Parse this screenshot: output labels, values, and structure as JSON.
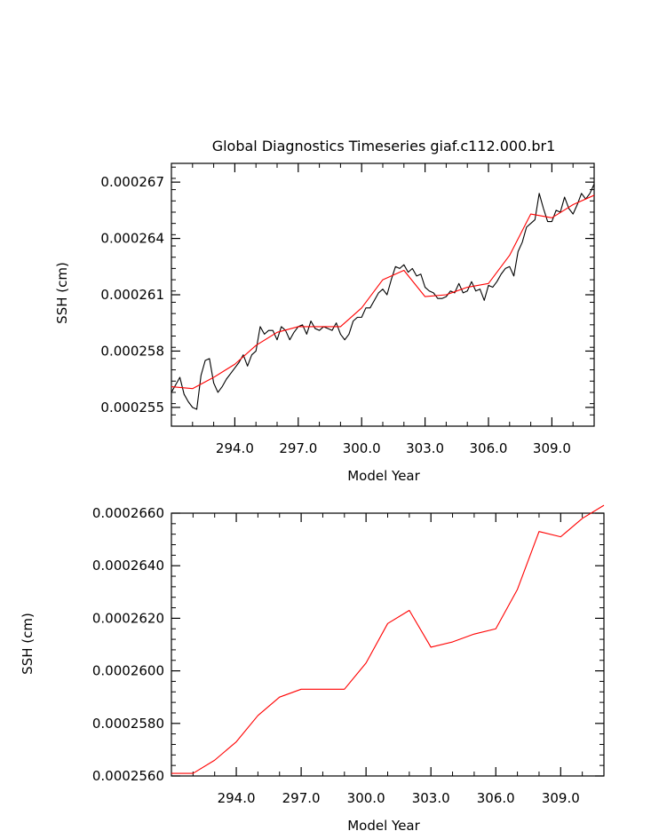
{
  "chart_data": [
    {
      "type": "line",
      "title": "Global Diagnostics Timeseries giaf.c112.000.br1",
      "xlabel": "Model Year",
      "ylabel": "SSH (cm)",
      "xlim": [
        291.0,
        311.0
      ],
      "ylim": [
        0.000254,
        0.000268
      ],
      "x_ticks": [
        294.0,
        297.0,
        300.0,
        303.0,
        306.0,
        309.0
      ],
      "x_tick_labels": [
        "294.0",
        "297.0",
        "300.0",
        "303.0",
        "306.0",
        "309.0"
      ],
      "y_ticks": [
        0.000255,
        0.000258,
        0.000261,
        0.000264,
        0.000267
      ],
      "y_tick_labels": [
        "0.000255",
        "0.000258",
        "0.000261",
        "0.000264",
        "0.000267"
      ],
      "series": [
        {
          "color": "#000000",
          "x": [
            291.0,
            291.2,
            291.4,
            291.6,
            291.8,
            292.0,
            292.2,
            292.4,
            292.6,
            292.8,
            293.0,
            293.2,
            293.4,
            293.6,
            293.8,
            294.0,
            294.2,
            294.4,
            294.6,
            294.8,
            295.0,
            295.2,
            295.4,
            295.6,
            295.8,
            296.0,
            296.2,
            296.4,
            296.6,
            296.8,
            297.0,
            297.2,
            297.4,
            297.6,
            297.8,
            298.0,
            298.2,
            298.4,
            298.6,
            298.8,
            299.0,
            299.2,
            299.4,
            299.6,
            299.8,
            300.0,
            300.2,
            300.4,
            300.6,
            300.8,
            301.0,
            301.2,
            301.4,
            301.6,
            301.8,
            302.0,
            302.2,
            302.4,
            302.6,
            302.8,
            303.0,
            303.2,
            303.4,
            303.6,
            303.8,
            304.0,
            304.2,
            304.4,
            304.6,
            304.8,
            305.0,
            305.2,
            305.4,
            305.6,
            305.8,
            306.0,
            306.2,
            306.4,
            306.6,
            306.8,
            307.0,
            307.2,
            307.4,
            307.6,
            307.8,
            308.0,
            308.2,
            308.4,
            308.6,
            308.8,
            309.0,
            309.2,
            309.4,
            309.6,
            309.8,
            310.0,
            310.2,
            310.4,
            310.6,
            310.8,
            311.0
          ],
          "values": [
            0.0002558,
            0.0002562,
            0.0002566,
            0.0002557,
            0.0002553,
            0.000255,
            0.0002549,
            0.0002567,
            0.0002575,
            0.0002576,
            0.0002563,
            0.0002558,
            0.0002561,
            0.0002565,
            0.0002568,
            0.0002571,
            0.0002574,
            0.0002578,
            0.0002572,
            0.0002578,
            0.000258,
            0.0002593,
            0.0002589,
            0.0002591,
            0.0002591,
            0.0002586,
            0.0002593,
            0.0002591,
            0.0002586,
            0.000259,
            0.0002593,
            0.0002594,
            0.0002589,
            0.0002596,
            0.0002592,
            0.0002591,
            0.0002593,
            0.0002592,
            0.0002591,
            0.0002595,
            0.0002589,
            0.0002586,
            0.0002589,
            0.0002596,
            0.0002598,
            0.0002598,
            0.0002603,
            0.0002603,
            0.0002607,
            0.0002611,
            0.0002613,
            0.000261,
            0.0002618,
            0.0002625,
            0.0002624,
            0.0002626,
            0.0002622,
            0.0002624,
            0.000262,
            0.0002621,
            0.0002614,
            0.0002612,
            0.0002611,
            0.0002608,
            0.0002608,
            0.0002609,
            0.0002612,
            0.0002611,
            0.0002616,
            0.0002611,
            0.0002612,
            0.0002617,
            0.0002612,
            0.0002613,
            0.0002607,
            0.0002615,
            0.0002614,
            0.0002617,
            0.0002621,
            0.0002624,
            0.0002625,
            0.000262,
            0.0002633,
            0.0002638,
            0.0002646,
            0.0002648,
            0.000265,
            0.0002664,
            0.0002656,
            0.0002649,
            0.0002649,
            0.0002655,
            0.0002654,
            0.0002662,
            0.0002656,
            0.0002653,
            0.0002658,
            0.0002664,
            0.0002661,
            0.0002664,
            0.0002669
          ]
        },
        {
          "color": "#ff0000",
          "x": [
            291.0,
            292.0,
            293.0,
            294.0,
            295.0,
            296.0,
            297.0,
            298.0,
            299.0,
            300.0,
            301.0,
            302.0,
            303.0,
            304.0,
            305.0,
            306.0,
            307.0,
            308.0,
            309.0,
            310.0,
            311.0
          ],
          "values": [
            0.0002561,
            0.000256,
            0.0002566,
            0.0002573,
            0.0002583,
            0.000259,
            0.0002593,
            0.0002593,
            0.0002593,
            0.0002603,
            0.0002618,
            0.0002623,
            0.0002609,
            0.000261,
            0.0002614,
            0.0002616,
            0.0002631,
            0.0002653,
            0.0002651,
            0.0002658,
            0.0002663
          ]
        }
      ]
    },
    {
      "type": "line",
      "title": "",
      "xlabel": "Model Year",
      "ylabel": "SSH (cm)",
      "xlim": [
        291.0,
        311.0
      ],
      "ylim": [
        0.000256,
        0.000266
      ],
      "x_ticks": [
        294.0,
        297.0,
        300.0,
        303.0,
        306.0,
        309.0
      ],
      "x_tick_labels": [
        "294.0",
        "297.0",
        "300.0",
        "303.0",
        "306.0",
        "309.0"
      ],
      "y_ticks": [
        0.000256,
        0.000258,
        0.00026,
        0.000262,
        0.000264,
        0.000266
      ],
      "y_tick_labels": [
        "0.0002560",
        "0.0002580",
        "0.0002600",
        "0.0002620",
        "0.0002640",
        "0.0002660"
      ],
      "series": [
        {
          "color": "#ff0000",
          "x": [
            291.0,
            292.0,
            293.0,
            294.0,
            295.0,
            296.0,
            297.0,
            298.0,
            299.0,
            300.0,
            301.0,
            302.0,
            303.0,
            304.0,
            305.0,
            306.0,
            307.0,
            308.0,
            309.0,
            310.0,
            311.0
          ],
          "values": [
            0.0002561,
            0.0002561,
            0.0002566,
            0.0002573,
            0.0002583,
            0.000259,
            0.0002593,
            0.0002593,
            0.0002593,
            0.0002603,
            0.0002618,
            0.0002623,
            0.0002609,
            0.0002611,
            0.0002614,
            0.0002616,
            0.0002631,
            0.0002653,
            0.0002651,
            0.0002658,
            0.0002663
          ]
        }
      ]
    }
  ]
}
